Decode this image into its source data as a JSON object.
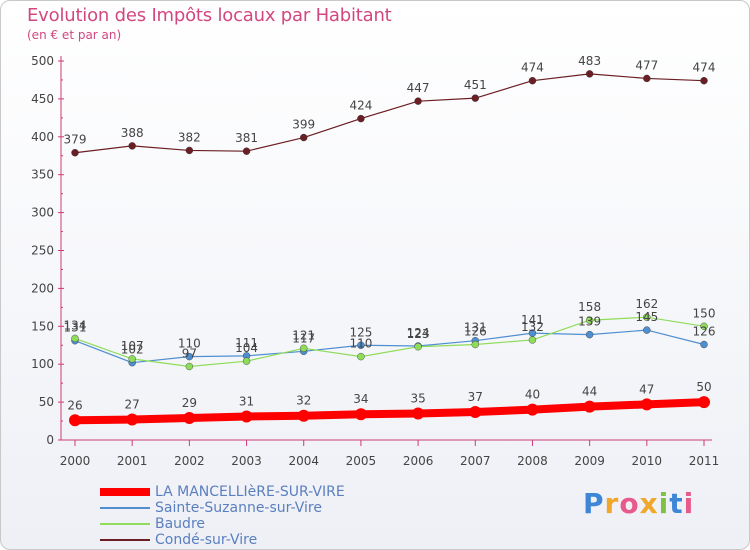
{
  "chart_data": {
    "type": "line",
    "title": "Evolution des Impôts locaux par Habitant",
    "subtitle": "(en € et par an)",
    "x": [
      "2000",
      "2001",
      "2002",
      "2003",
      "2004",
      "2005",
      "2006",
      "2007",
      "2008",
      "2009",
      "2010",
      "2011"
    ],
    "ylim": [
      0,
      500
    ],
    "yticks": [
      0,
      50,
      100,
      150,
      200,
      250,
      300,
      350,
      400,
      450,
      500
    ],
    "grid": false,
    "series": [
      {
        "name": "Condé-sur-Vire",
        "color": "#6b1e23",
        "values": [
          379,
          388,
          382,
          381,
          399,
          424,
          447,
          451,
          474,
          483,
          477,
          474
        ]
      },
      {
        "name": "Sainte-Suzanne-sur-Vire",
        "color": "#4f8fd0",
        "values": [
          131,
          102,
          110,
          111,
          117,
          125,
          124,
          131,
          141,
          139,
          145,
          126
        ]
      },
      {
        "name": "Baudre",
        "color": "#8fdc5a",
        "values": [
          134,
          107,
          97,
          104,
          121,
          110,
          123,
          126,
          132,
          158,
          162,
          150
        ]
      },
      {
        "name": "LA MANCELLIèRE-SUR-VIRE",
        "color": "#ff0000",
        "values": [
          26,
          27,
          29,
          31,
          32,
          34,
          35,
          37,
          40,
          44,
          47,
          50
        ]
      }
    ],
    "legend": [
      {
        "name": "LA MANCELLIèRE-SUR-VIRE",
        "color": "#ff0000",
        "thick": true
      },
      {
        "name": "Sainte-Suzanne-sur-Vire",
        "color": "#4f8fd0",
        "thick": false
      },
      {
        "name": "Baudre",
        "color": "#8fdc5a",
        "thick": false
      },
      {
        "name": "Condé-sur-Vire",
        "color": "#6b1e23",
        "thick": false
      }
    ]
  },
  "logo": {
    "text": "Proxiti"
  }
}
